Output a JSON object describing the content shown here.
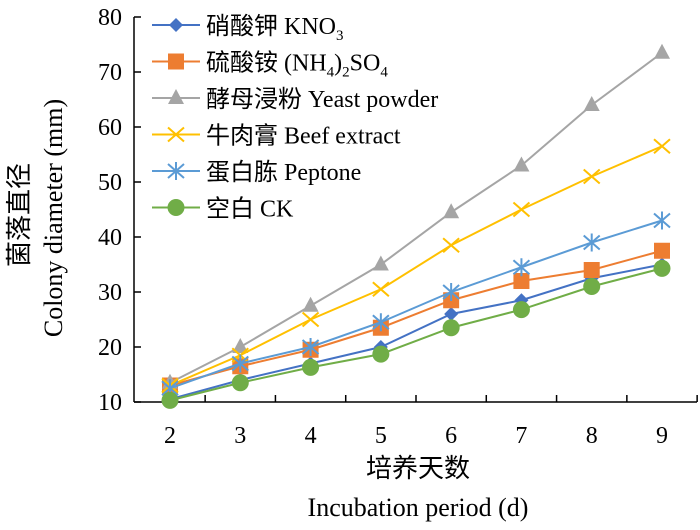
{
  "chart_data": {
    "type": "line",
    "title": "",
    "xlabel_cn": "培养天数",
    "xlabel": "Incubation period (d)",
    "ylabel_cn": "菌落直径",
    "ylabel": "Colony diameter (mm)",
    "x": [
      2,
      3,
      4,
      5,
      6,
      7,
      8,
      9
    ],
    "xlim": [
      1.5,
      9.5
    ],
    "ylim": [
      10,
      80
    ],
    "yticks": [
      10,
      20,
      30,
      40,
      50,
      60,
      70,
      80
    ],
    "xticks": [
      2,
      3,
      4,
      5,
      6,
      7,
      8,
      9
    ],
    "grid": false,
    "legend_position": "top-left",
    "series": [
      {
        "name": "硝酸钾 KNO3",
        "label_cn": "硝酸钾",
        "label_en": "KNO",
        "sub1": "3",
        "mid": "",
        "sub2": "",
        "color": "#4472C4",
        "marker": "diamond",
        "values": [
          10.5,
          14,
          17,
          20,
          26,
          28.5,
          32.5,
          35
        ]
      },
      {
        "name": "硫酸铵 (NH4)2SO4",
        "label_cn": "硫酸铵",
        "label_en": "(NH",
        "sub1": "4",
        "mid": ")",
        "sub2": "2",
        "tail": "SO",
        "sub3": "4",
        "color": "#ED7D31",
        "marker": "square",
        "values": [
          13,
          16.5,
          19.5,
          23.5,
          28.5,
          32,
          34,
          37.5
        ]
      },
      {
        "name": "酵母浸粉 Yeast powder",
        "label_cn": "酵母浸粉",
        "label_en": "Yeast powder",
        "color": "#A5A5A5",
        "marker": "triangle",
        "values": [
          13.5,
          20,
          27.5,
          35,
          44.5,
          53,
          64,
          73.5
        ]
      },
      {
        "name": "牛肉膏 Beef extract",
        "label_cn": "牛肉膏",
        "label_en": "Beef extract",
        "color": "#FFC000",
        "marker": "x",
        "values": [
          13,
          18.5,
          25,
          30.5,
          38.5,
          45,
          51,
          56.5
        ]
      },
      {
        "name": "蛋白胨 Peptone",
        "label_cn": "蛋白胨",
        "label_en": "Peptone",
        "color": "#5B9BD5",
        "marker": "star",
        "values": [
          12.5,
          17,
          20,
          24.5,
          30,
          34.5,
          39,
          43
        ]
      },
      {
        "name": "空白 CK",
        "label_cn": "空白",
        "label_en": "CK",
        "color": "#70AD47",
        "marker": "circle",
        "values": [
          10.3,
          13.5,
          16.3,
          18.7,
          23.5,
          26.8,
          31,
          34.3
        ]
      }
    ]
  }
}
